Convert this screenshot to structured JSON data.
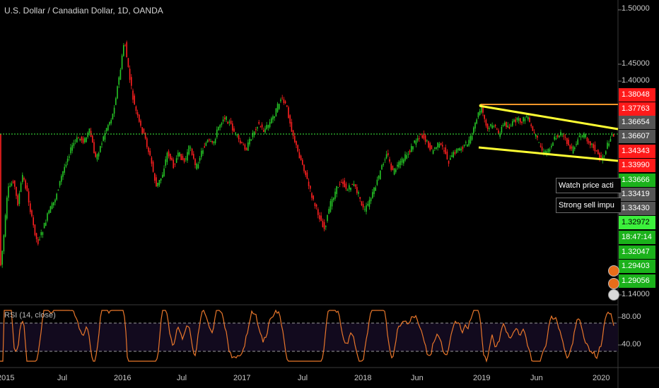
{
  "header": {
    "title": "U.S. Dollar / Canadian Dollar, 1D, OANDA"
  },
  "rsi": {
    "title": "RSI (14, close)",
    "labels": [
      "80.00",
      "40.00"
    ]
  },
  "price_axis": [
    "1.50000",
    "1.45000",
    "1.40000",
    "1.14000"
  ],
  "price_tags": [
    {
      "text": "1.38048",
      "bg": "#ff1a1a",
      "fg": "#ffffff"
    },
    {
      "text": "1.37763",
      "bg": "#ff1a1a",
      "fg": "#ffffff"
    },
    {
      "text": "1.36654",
      "bg": "#555555",
      "fg": "#ffffff"
    },
    {
      "text": "1.36607",
      "bg": "#555555",
      "fg": "#ffffff"
    },
    {
      "text": "1.34343",
      "bg": "#ff1a1a",
      "fg": "#ffffff"
    },
    {
      "text": "1.33990",
      "bg": "#ff1a1a",
      "fg": "#ffffff"
    },
    {
      "text": "1.33666",
      "bg": "#1bb21b",
      "fg": "#ffffff"
    },
    {
      "text": "1.33419",
      "bg": "#555555",
      "fg": "#ffffff"
    },
    {
      "text": "1.33430",
      "bg": "#555555",
      "fg": "#ffffff"
    },
    {
      "text": "1.32972",
      "bg": "#3cf03c",
      "fg": "#000000"
    },
    {
      "text": "18:47:14",
      "bg": "#1bb21b",
      "fg": "#ffffff"
    },
    {
      "text": "1.32047",
      "bg": "#1bb21b",
      "fg": "#ffffff"
    },
    {
      "text": "1.29403",
      "bg": "#1bb21b",
      "fg": "#ffffff"
    },
    {
      "text": "1.29056",
      "bg": "#1bb21b",
      "fg": "#ffffff"
    }
  ],
  "notes": [
    "Watch price acti",
    "Strong sell impu"
  ],
  "time_axis": [
    "2015",
    "Jul",
    "2016",
    "Jul",
    "2017",
    "Jul",
    "2018",
    "Jun",
    "2019",
    "Jun",
    "2020"
  ],
  "colors": {
    "up": "#26c626",
    "down": "#ff2020",
    "channel": "#ffff33",
    "resistance": "#f0962a",
    "rsi": "#e8762b",
    "current": "#3cf03c"
  },
  "chart_data": {
    "type": "candlestick",
    "symbol": "USD/CAD",
    "x_range": [
      "2015",
      "2020"
    ],
    "y_range": [
      1.14,
      1.5
    ],
    "current_price": 1.36607,
    "resistance_level": 1.37763,
    "channel": {
      "upper": [
        [
          "2019",
          1.378
        ],
        [
          "2020",
          1.362
        ]
      ],
      "lower": [
        [
          "2019",
          1.339
        ],
        [
          "2020",
          1.318
        ]
      ]
    },
    "rsi": {
      "overbought": 70,
      "oversold": 30,
      "ticks": [
        80,
        40
      ]
    }
  }
}
